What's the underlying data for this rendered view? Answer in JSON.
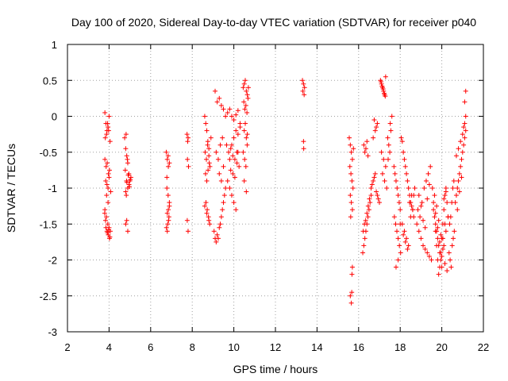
{
  "chart_data": {
    "type": "scatter",
    "title": "Day 100 of 2020, Sidereal Day-to-day VTEC variation (SDTVAR) for receiver p040",
    "xlabel": "GPS time / hours",
    "ylabel": "SDTVAR / TECUs",
    "xlim": [
      2,
      22
    ],
    "ylim": [
      -3,
      1
    ],
    "x_ticks": [
      "2",
      "4",
      "6",
      "8",
      "10",
      "12",
      "14",
      "16",
      "18",
      "20",
      "22"
    ],
    "y_ticks": [
      "1",
      "0.5",
      "0",
      "-0.5",
      "-1",
      "-1.5",
      "-2",
      "-2.5",
      "-3"
    ],
    "grid": true,
    "marker": "+",
    "color": "#ff0000",
    "series": [
      {
        "name": "SDTVAR",
        "x": [
          3.8,
          3.85,
          3.9,
          3.95,
          4.0,
          3.82,
          3.88,
          3.93,
          3.98,
          4.05,
          3.8,
          3.86,
          3.91,
          3.97,
          4.02,
          3.84,
          3.9,
          3.95,
          4.0,
          4.08,
          3.8,
          3.87,
          3.94,
          4.0,
          4.06,
          3.83,
          3.9,
          3.96,
          4.02,
          3.79,
          3.85,
          3.92,
          3.98,
          4.04,
          3.88,
          3.95,
          4.75,
          4.8,
          4.85,
          4.9,
          4.95,
          5.0,
          5.05,
          4.78,
          4.84,
          4.9,
          4.96,
          5.02,
          4.8,
          4.86,
          4.92,
          4.98,
          4.82,
          4.88,
          4.8,
          4.85,
          4.9,
          4.83,
          6.75,
          6.8,
          6.85,
          6.9,
          6.78,
          6.84,
          6.9,
          6.8,
          6.86,
          6.76,
          6.82,
          6.88,
          6.8,
          6.85,
          6.9,
          6.78,
          6.84,
          7.75,
          7.8,
          7.77,
          7.82,
          7.76,
          7.8,
          7.78,
          8.6,
          8.65,
          8.7,
          8.75,
          8.8,
          8.62,
          8.68,
          8.74,
          8.8,
          8.85,
          8.64,
          8.7,
          8.76,
          8.82,
          8.66,
          8.72,
          8.78,
          8.84,
          8.6,
          8.7,
          8.8,
          8.9,
          9.05,
          9.1,
          9.15,
          9.2,
          9.25,
          9.3,
          9.35,
          9.4,
          9.45,
          9.5,
          9.55,
          9.6,
          9.1,
          9.2,
          9.3,
          9.4,
          9.5,
          9.15,
          9.25,
          9.35,
          9.45,
          9.3,
          9.4,
          9.5,
          9.6,
          9.7,
          9.8,
          9.9,
          10.0,
          10.1,
          10.2,
          10.3,
          9.65,
          9.75,
          9.85,
          9.95,
          10.05,
          10.15,
          10.25,
          9.7,
          9.8,
          9.9,
          10.0,
          10.1,
          10.2,
          9.8,
          9.9,
          10.0,
          10.1,
          10.2,
          10.3,
          9.85,
          9.95,
          10.05,
          10.15,
          10.45,
          10.5,
          10.55,
          10.6,
          10.65,
          10.7,
          10.48,
          10.53,
          10.58,
          10.63,
          10.68,
          10.5,
          10.55,
          10.6,
          10.65,
          10.45,
          10.52,
          10.58,
          10.64,
          10.5,
          10.6,
          13.3,
          13.35,
          13.4,
          13.32,
          13.38,
          13.35,
          13.36,
          15.55,
          15.6,
          15.65,
          15.7,
          15.75,
          15.58,
          15.63,
          15.68,
          15.73,
          15.6,
          15.65,
          15.7,
          15.62,
          15.67,
          15.6,
          15.65,
          15.7,
          15.68,
          16.2,
          16.25,
          16.3,
          16.35,
          16.4,
          16.45,
          16.5,
          16.55,
          16.6,
          16.22,
          16.28,
          16.34,
          16.4,
          16.46,
          16.52,
          16.25,
          16.3,
          16.35,
          16.4,
          16.45,
          16.6,
          16.7,
          16.8,
          16.9,
          17.0,
          16.65,
          16.75,
          16.85,
          16.95,
          16.7,
          16.8,
          16.9,
          16.75,
          16.85,
          17.05,
          17.1,
          17.15,
          17.2,
          17.25,
          17.3,
          17.08,
          17.13,
          17.18,
          17.23,
          17.28,
          17.1,
          17.2,
          17.3,
          17.15,
          17.25,
          17.35,
          17.4,
          17.45,
          17.5,
          17.55,
          17.6,
          17.42,
          17.52,
          17.7,
          17.75,
          17.8,
          17.85,
          17.9,
          17.95,
          18.0,
          17.72,
          17.78,
          17.84,
          17.9,
          17.96,
          18.02,
          17.8,
          17.9,
          18.0,
          18.05,
          18.1,
          18.15,
          18.2,
          18.25,
          18.3,
          18.35,
          18.4,
          18.45,
          18.5,
          18.55,
          18.6,
          18.65,
          18.7,
          18.1,
          18.2,
          18.3,
          18.4,
          18.5,
          18.6,
          18.15,
          18.25,
          18.35,
          18.45,
          18.55,
          18.65,
          18.8,
          18.9,
          19.0,
          19.1,
          19.2,
          19.3,
          19.4,
          19.5,
          18.85,
          18.95,
          19.05,
          19.15,
          19.25,
          19.35,
          19.45,
          18.9,
          19.0,
          19.1,
          19.2,
          19.3,
          19.4,
          19.55,
          19.6,
          19.65,
          19.7,
          19.75,
          19.8,
          19.85,
          19.9,
          19.95,
          20.0,
          20.05,
          20.1,
          20.15,
          20.2,
          20.25,
          20.3,
          19.6,
          19.7,
          19.8,
          19.9,
          20.0,
          20.1,
          20.2,
          20.3,
          19.65,
          19.75,
          19.85,
          19.95,
          20.05,
          20.15,
          20.25,
          19.7,
          19.8,
          19.9,
          20.0,
          20.1,
          20.2,
          19.75,
          19.85,
          19.95,
          20.05,
          20.15,
          20.35,
          20.4,
          20.45,
          20.5,
          20.55,
          20.6,
          20.38,
          20.43,
          20.48,
          20.53,
          20.58,
          20.65,
          20.7,
          20.75,
          20.8,
          20.85,
          20.9,
          20.95,
          21.0,
          21.05,
          21.1,
          21.15,
          20.7,
          20.8,
          20.9,
          21.0,
          21.1,
          20.75,
          20.85,
          20.95,
          21.05,
          21.15,
          21.1,
          21.15
        ],
        "y": [
          0.05,
          -0.1,
          -0.2,
          -0.15,
          0.0,
          -0.3,
          -0.25,
          -0.1,
          -0.2,
          -0.35,
          -0.6,
          -0.7,
          -0.65,
          -0.8,
          -0.75,
          -0.9,
          -0.95,
          -1.0,
          -0.85,
          -1.05,
          -1.3,
          -1.4,
          -1.5,
          -1.55,
          -1.6,
          -1.45,
          -1.6,
          -1.65,
          -1.7,
          -1.35,
          -1.55,
          -1.62,
          -1.58,
          -1.68,
          -1.1,
          -1.2,
          -0.3,
          -0.45,
          -0.55,
          -0.65,
          -0.8,
          -0.9,
          -0.85,
          -0.75,
          -0.9,
          -1.0,
          -0.95,
          -0.88,
          -1.05,
          -0.92,
          -0.82,
          -0.98,
          -0.25,
          -0.6,
          -1.5,
          -1.45,
          -1.6,
          -1.1,
          -0.5,
          -0.6,
          -0.7,
          -0.65,
          -1.0,
          -1.1,
          -1.2,
          -1.35,
          -1.45,
          -1.55,
          -1.5,
          -1.4,
          -1.6,
          -1.3,
          -1.25,
          -0.85,
          -0.55,
          -0.25,
          -0.3,
          -0.6,
          -0.7,
          -1.45,
          -1.6,
          -0.35,
          0.0,
          -0.1,
          -0.2,
          -0.35,
          -0.45,
          -0.5,
          -0.6,
          -0.4,
          -0.55,
          -0.7,
          -0.8,
          -0.9,
          -0.75,
          -0.65,
          -1.2,
          -1.3,
          -1.4,
          -1.5,
          -1.25,
          -1.35,
          -1.45,
          -0.3,
          -1.6,
          -1.7,
          -1.75,
          -1.65,
          -1.7,
          -1.55,
          -1.5,
          -1.4,
          -1.3,
          -1.2,
          -1.1,
          -1.0,
          0.35,
          0.2,
          0.25,
          0.15,
          0.1,
          -0.5,
          -0.6,
          -0.4,
          -0.3,
          -0.8,
          -0.9,
          -0.7,
          0.0,
          0.05,
          0.1,
          0.0,
          -0.05,
          0.02,
          0.08,
          -0.1,
          -0.4,
          -0.5,
          -0.45,
          -0.55,
          -0.6,
          -0.65,
          -0.7,
          -0.9,
          -1.0,
          -1.1,
          -1.2,
          -1.3,
          -0.5,
          -0.6,
          -0.4,
          -0.3,
          -0.2,
          -0.25,
          -0.15,
          -0.75,
          -0.8,
          -0.85,
          -0.5,
          0.4,
          0.45,
          0.5,
          0.35,
          0.3,
          0.4,
          0.2,
          0.1,
          0.15,
          0.05,
          0.25,
          -0.2,
          -0.1,
          -0.3,
          -0.25,
          -0.5,
          -0.6,
          -0.7,
          -0.4,
          -0.9,
          -1.05,
          0.5,
          0.45,
          0.4,
          0.35,
          0.3,
          -0.35,
          -0.45,
          -0.3,
          -0.4,
          -0.5,
          -0.6,
          -0.45,
          -0.7,
          -0.8,
          -0.9,
          -1.0,
          -1.1,
          -1.2,
          -1.3,
          -1.4,
          -2.45,
          -2.5,
          -2.6,
          -2.1,
          -2.2,
          -1.9,
          -1.8,
          -1.7,
          -1.6,
          -1.5,
          -1.4,
          -1.3,
          -1.2,
          -1.1,
          -1.6,
          -1.5,
          -1.45,
          -1.35,
          -1.25,
          -1.15,
          -0.4,
          -0.5,
          -0.45,
          -0.35,
          -0.55,
          -1.0,
          -0.9,
          -0.8,
          -1.1,
          -1.2,
          -0.95,
          -0.85,
          -1.05,
          -1.15,
          -0.3,
          -0.2,
          -0.1,
          -0.05,
          -0.15,
          0.5,
          0.45,
          0.4,
          0.35,
          0.3,
          0.55,
          0.48,
          0.42,
          0.38,
          0.32,
          0.28,
          -0.5,
          -0.6,
          -0.7,
          -0.8,
          -0.9,
          -1.0,
          -0.3,
          -0.4,
          -0.5,
          -0.2,
          0.0,
          -0.6,
          -0.1,
          -0.7,
          -0.8,
          -0.9,
          -1.0,
          -1.1,
          -1.2,
          -1.3,
          -1.4,
          -1.5,
          -1.6,
          -1.7,
          -1.8,
          -1.9,
          -2.1,
          -2.0,
          -1.5,
          -0.3,
          -0.35,
          -0.5,
          -0.6,
          -0.7,
          -0.8,
          -0.9,
          -1.0,
          -1.1,
          -1.2,
          -1.25,
          -1.3,
          -1.1,
          -1.0,
          -1.5,
          -1.6,
          -1.7,
          -1.8,
          -1.4,
          -1.3,
          -1.65,
          -1.75,
          -1.85,
          -1.2,
          -1.1,
          -1.4,
          -1.5,
          -1.6,
          -1.7,
          -1.8,
          -1.85,
          -1.9,
          -1.95,
          -2.0,
          -1.3,
          -1.4,
          -1.2,
          -1.0,
          -0.9,
          -0.8,
          -0.7,
          -1.1,
          -1.25,
          -1.45,
          -1.55,
          -1.15,
          -0.95,
          -1.0,
          -1.2,
          -1.4,
          -1.6,
          -1.8,
          -2.0,
          -2.2,
          -2.1,
          -1.9,
          -1.7,
          -1.5,
          -1.3,
          -1.1,
          -1.0,
          -1.2,
          -1.4,
          -1.3,
          -1.5,
          -1.7,
          -1.9,
          -2.1,
          -1.8,
          -1.6,
          -1.4,
          -1.1,
          -1.25,
          -1.45,
          -1.65,
          -1.85,
          -2.05,
          -2.15,
          -1.35,
          -1.55,
          -1.75,
          -1.95,
          -1.15,
          -1.05,
          -1.6,
          -1.8,
          -2.0,
          -1.7,
          -1.5,
          -1.9,
          -2.0,
          -2.1,
          -1.8,
          -1.7,
          -1.6,
          -1.5,
          -1.4,
          -1.2,
          -1.0,
          -0.9,
          -1.2,
          -1.1,
          -1.0,
          -0.9,
          -0.8,
          -0.7,
          -0.6,
          -0.5,
          -0.4,
          -0.3,
          -0.2,
          -0.55,
          -0.45,
          -0.35,
          -0.25,
          -0.1,
          -1.3,
          -1.05,
          -0.85,
          -0.15,
          0.0,
          0.2,
          0.35
        ]
      }
    ]
  }
}
